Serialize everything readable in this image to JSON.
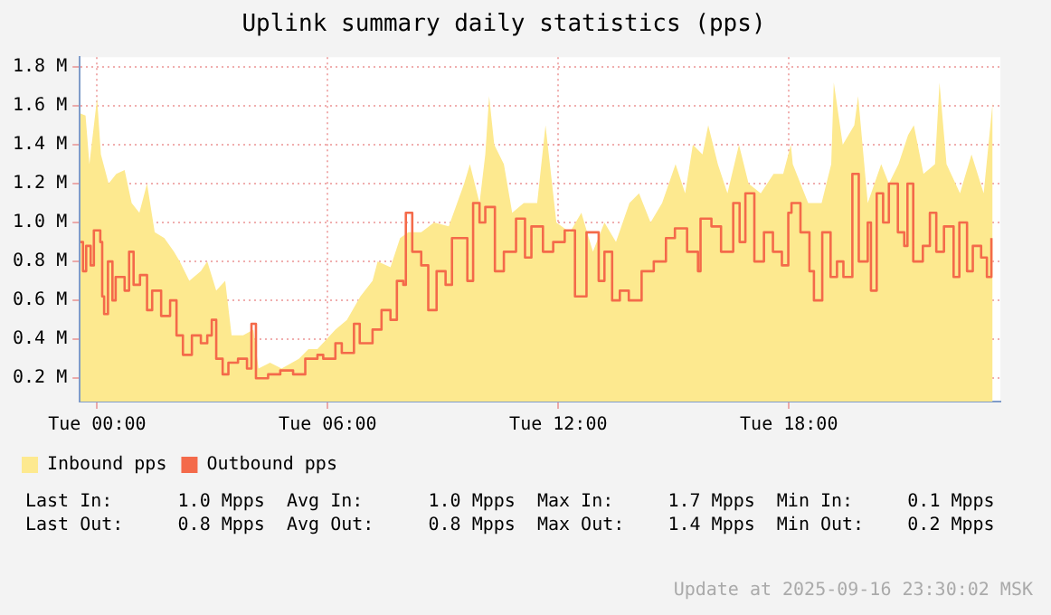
{
  "chart_data": {
    "type": "area",
    "title": "Uplink summary daily statistics (pps)",
    "xlim": [
      "2025-09-15T23:33",
      "2025-09-16T23:30"
    ],
    "xticks": [
      {
        "value": "2025-09-16T00:00",
        "label": "Tue 00:00"
      },
      {
        "value": "2025-09-16T06:00",
        "label": "Tue 06:00"
      },
      {
        "value": "2025-09-16T12:00",
        "label": "Tue 12:00"
      },
      {
        "value": "2025-09-16T18:00",
        "label": "Tue 18:00"
      }
    ],
    "ylim": [
      0.08,
      1.85
    ],
    "yticks": [
      {
        "value": 0.2,
        "label": "0.2 M"
      },
      {
        "value": 0.4,
        "label": "0.4 M"
      },
      {
        "value": 0.6,
        "label": "0.6 M"
      },
      {
        "value": 0.8,
        "label": "0.8 M"
      },
      {
        "value": 1.0,
        "label": "1.0 M"
      },
      {
        "value": 1.2,
        "label": "1.2 M"
      },
      {
        "value": 1.4,
        "label": "1.4 M"
      },
      {
        "value": 1.6,
        "label": "1.6 M"
      },
      {
        "value": 1.8,
        "label": "1.8 M"
      }
    ],
    "grid": true,
    "legend": "bottom",
    "series": [
      {
        "name": "Inbound pps",
        "type": "area",
        "color": "#fde98f",
        "x": [
          "2025-09-15T23:34",
          "2025-09-15T23:42",
          "2025-09-15T23:48",
          "2025-09-16T00:00",
          "2025-09-16T00:06",
          "2025-09-16T00:18",
          "2025-09-16T00:30",
          "2025-09-16T00:43",
          "2025-09-16T00:54",
          "2025-09-16T01:06",
          "2025-09-16T01:18",
          "2025-09-16T01:30",
          "2025-09-16T01:45",
          "2025-09-16T02:00",
          "2025-09-16T02:09",
          "2025-09-16T02:24",
          "2025-09-16T02:42",
          "2025-09-16T02:52",
          "2025-09-16T03:06",
          "2025-09-16T03:20",
          "2025-09-16T03:30",
          "2025-09-16T03:48",
          "2025-09-16T04:04",
          "2025-09-16T04:12",
          "2025-09-16T04:30",
          "2025-09-16T04:48",
          "2025-09-16T05:15",
          "2025-09-16T05:30",
          "2025-09-16T05:44",
          "2025-09-16T06:12",
          "2025-09-16T06:30",
          "2025-09-16T06:51",
          "2025-09-16T07:10",
          "2025-09-16T07:18",
          "2025-09-16T07:38",
          "2025-09-16T07:53",
          "2025-09-16T08:06",
          "2025-09-16T08:26",
          "2025-09-16T08:46",
          "2025-09-16T09:09",
          "2025-09-16T09:33",
          "2025-09-16T09:42",
          "2025-09-16T09:57",
          "2025-09-16T10:06",
          "2025-09-16T10:12",
          "2025-09-16T10:20",
          "2025-09-16T10:35",
          "2025-09-16T10:48",
          "2025-09-16T11:06",
          "2025-09-16T11:27",
          "2025-09-16T11:40",
          "2025-09-16T11:57",
          "2025-09-16T12:18",
          "2025-09-16T12:36",
          "2025-09-16T12:54",
          "2025-09-16T13:12",
          "2025-09-16T13:30",
          "2025-09-16T13:51",
          "2025-09-16T14:06",
          "2025-09-16T14:24",
          "2025-09-16T14:42",
          "2025-09-16T15:03",
          "2025-09-16T15:18",
          "2025-09-16T15:30",
          "2025-09-16T15:45",
          "2025-09-16T15:54",
          "2025-09-16T16:09",
          "2025-09-16T16:24",
          "2025-09-16T16:42",
          "2025-09-16T16:57",
          "2025-09-16T17:16",
          "2025-09-16T17:36",
          "2025-09-16T17:51",
          "2025-09-16T18:03",
          "2025-09-16T18:06",
          "2025-09-16T18:30",
          "2025-09-16T18:51",
          "2025-09-16T19:06",
          "2025-09-16T19:10",
          "2025-09-16T19:24",
          "2025-09-16T19:42",
          "2025-09-16T19:48",
          "2025-09-16T20:03",
          "2025-09-16T20:24",
          "2025-09-16T20:36",
          "2025-09-16T20:51",
          "2025-09-16T21:06",
          "2025-09-16T21:15",
          "2025-09-16T21:30",
          "2025-09-16T21:48",
          "2025-09-16T21:55",
          "2025-09-16T22:06",
          "2025-09-16T22:27",
          "2025-09-16T22:45",
          "2025-09-16T23:04",
          "2025-09-16T23:18"
        ],
        "values": [
          1.56,
          1.55,
          1.3,
          1.64,
          1.35,
          1.2,
          1.25,
          1.27,
          1.1,
          1.05,
          1.2,
          0.95,
          0.92,
          0.85,
          0.8,
          0.7,
          0.75,
          0.8,
          0.65,
          0.7,
          0.42,
          0.42,
          0.45,
          0.25,
          0.28,
          0.25,
          0.3,
          0.35,
          0.35,
          0.45,
          0.5,
          0.62,
          0.7,
          0.8,
          0.77,
          0.92,
          0.95,
          0.95,
          1.0,
          0.98,
          1.2,
          1.3,
          1.1,
          1.35,
          1.65,
          1.4,
          1.3,
          1.05,
          1.1,
          1.1,
          1.5,
          1.0,
          0.95,
          1.05,
          0.85,
          1.0,
          0.9,
          1.1,
          1.15,
          1.0,
          1.1,
          1.3,
          1.15,
          1.4,
          1.35,
          1.5,
          1.3,
          1.15,
          1.4,
          1.2,
          1.15,
          1.25,
          1.25,
          1.4,
          1.3,
          1.1,
          1.1,
          1.3,
          1.72,
          1.4,
          1.5,
          1.65,
          1.1,
          1.3,
          1.2,
          1.3,
          1.45,
          1.5,
          1.25,
          1.3,
          1.72,
          1.3,
          1.15,
          1.35,
          1.15,
          1.62
        ]
      },
      {
        "name": "Outbound pps",
        "type": "step",
        "color": "#f46a4a",
        "x": [
          "2025-09-15T23:34",
          "2025-09-15T23:38",
          "2025-09-15T23:43",
          "2025-09-15T23:50",
          "2025-09-15T23:55",
          "2025-09-16T00:05",
          "2025-09-16T00:08",
          "2025-09-16T00:11",
          "2025-09-16T00:17",
          "2025-09-16T00:24",
          "2025-09-16T00:29",
          "2025-09-16T00:36",
          "2025-09-16T00:43",
          "2025-09-16T00:50",
          "2025-09-16T00:57",
          "2025-09-16T01:07",
          "2025-09-16T01:18",
          "2025-09-16T01:26",
          "2025-09-16T01:40",
          "2025-09-16T01:54",
          "2025-09-16T02:04",
          "2025-09-16T02:14",
          "2025-09-16T02:28",
          "2025-09-16T02:42",
          "2025-09-16T02:52",
          "2025-09-16T02:59",
          "2025-09-16T03:06",
          "2025-09-16T03:16",
          "2025-09-16T03:25",
          "2025-09-16T03:40",
          "2025-09-16T03:54",
          "2025-09-16T04:01",
          "2025-09-16T04:08",
          "2025-09-16T04:27",
          "2025-09-16T04:46",
          "2025-09-16T05:06",
          "2025-09-16T05:25",
          "2025-09-16T05:44",
          "2025-09-16T05:53",
          "2025-09-16T06:12",
          "2025-09-16T06:22",
          "2025-09-16T06:41",
          "2025-09-16T06:50",
          "2025-09-16T07:10",
          "2025-09-16T07:24",
          "2025-09-16T07:38",
          "2025-09-16T07:48",
          "2025-09-16T07:58",
          "2025-09-16T08:02",
          "2025-09-16T08:12",
          "2025-09-16T08:26",
          "2025-09-16T08:37",
          "2025-09-16T08:50",
          "2025-09-16T09:04",
          "2025-09-16T09:14",
          "2025-09-16T09:28",
          "2025-09-16T09:38",
          "2025-09-16T09:47",
          "2025-09-16T09:57",
          "2025-09-16T10:06",
          "2025-09-16T10:21",
          "2025-09-16T10:35",
          "2025-09-16T10:54",
          "2025-09-16T11:08",
          "2025-09-16T11:18",
          "2025-09-16T11:36",
          "2025-09-16T11:52",
          "2025-09-16T12:10",
          "2025-09-16T12:26",
          "2025-09-16T12:44",
          "2025-09-16T13:03",
          "2025-09-16T13:12",
          "2025-09-16T13:24",
          "2025-09-16T13:36",
          "2025-09-16T13:50",
          "2025-09-16T14:10",
          "2025-09-16T14:29",
          "2025-09-16T14:48",
          "2025-09-16T15:02",
          "2025-09-16T15:21",
          "2025-09-16T15:38",
          "2025-09-16T15:42",
          "2025-09-16T15:59",
          "2025-09-16T16:14",
          "2025-09-16T16:33",
          "2025-09-16T16:43",
          "2025-09-16T16:52",
          "2025-09-16T17:06",
          "2025-09-16T17:21",
          "2025-09-16T17:35",
          "2025-09-16T17:49",
          "2025-09-16T17:59",
          "2025-09-16T18:04",
          "2025-09-16T18:18",
          "2025-09-16T18:32",
          "2025-09-16T18:39",
          "2025-09-16T18:52",
          "2025-09-16T19:05",
          "2025-09-16T19:15",
          "2025-09-16T19:25",
          "2025-09-16T19:39",
          "2025-09-16T19:49",
          "2025-09-16T20:03",
          "2025-09-16T20:08",
          "2025-09-16T20:17",
          "2025-09-16T20:27",
          "2025-09-16T20:36",
          "2025-09-16T20:50",
          "2025-09-16T21:00",
          "2025-09-16T21:05",
          "2025-09-16T21:14",
          "2025-09-16T21:29",
          "2025-09-16T21:40",
          "2025-09-16T21:50",
          "2025-09-16T22:02",
          "2025-09-16T22:17",
          "2025-09-16T22:26",
          "2025-09-16T22:38",
          "2025-09-16T22:47",
          "2025-09-16T23:00",
          "2025-09-16T23:09",
          "2025-09-16T23:16"
        ],
        "values": [
          0.9,
          0.75,
          0.88,
          0.78,
          0.96,
          0.9,
          0.62,
          0.53,
          0.8,
          0.6,
          0.72,
          0.72,
          0.65,
          0.85,
          0.68,
          0.73,
          0.55,
          0.65,
          0.52,
          0.6,
          0.42,
          0.32,
          0.42,
          0.38,
          0.42,
          0.5,
          0.3,
          0.22,
          0.28,
          0.3,
          0.25,
          0.48,
          0.2,
          0.22,
          0.24,
          0.22,
          0.3,
          0.32,
          0.3,
          0.38,
          0.33,
          0.48,
          0.38,
          0.45,
          0.55,
          0.5,
          0.7,
          0.68,
          1.05,
          0.85,
          0.78,
          0.55,
          0.75,
          0.68,
          0.92,
          0.92,
          0.7,
          1.1,
          1.0,
          1.08,
          0.75,
          0.85,
          1.02,
          0.82,
          0.98,
          0.85,
          0.9,
          0.96,
          0.62,
          0.95,
          0.7,
          0.85,
          0.6,
          0.65,
          0.6,
          0.75,
          0.8,
          0.92,
          0.97,
          0.85,
          0.75,
          1.02,
          0.98,
          0.85,
          1.1,
          0.9,
          1.15,
          0.8,
          0.95,
          0.85,
          0.78,
          1.05,
          1.1,
          0.95,
          0.75,
          0.6,
          0.95,
          0.72,
          0.8,
          0.72,
          1.25,
          0.8,
          1.0,
          0.65,
          1.15,
          1.0,
          1.2,
          0.95,
          0.88,
          1.2,
          0.8,
          0.88,
          1.05,
          0.85,
          0.98,
          0.72,
          1.0,
          0.75,
          0.88,
          0.82,
          0.72,
          0.92
        ]
      }
    ],
    "annotations": [
      "Last In:      1.0 Mpps  Avg In:      1.0 Mpps  Max In:     1.7 Mpps  Min In:     0.1 Mpps",
      "Last Out:     0.8 Mpps  Avg Out:     0.8 Mpps  Max Out:    1.4 Mpps  Min Out:    0.2 Mpps",
      "Update at 2025-09-16 23:30:02 MSK"
    ]
  }
}
